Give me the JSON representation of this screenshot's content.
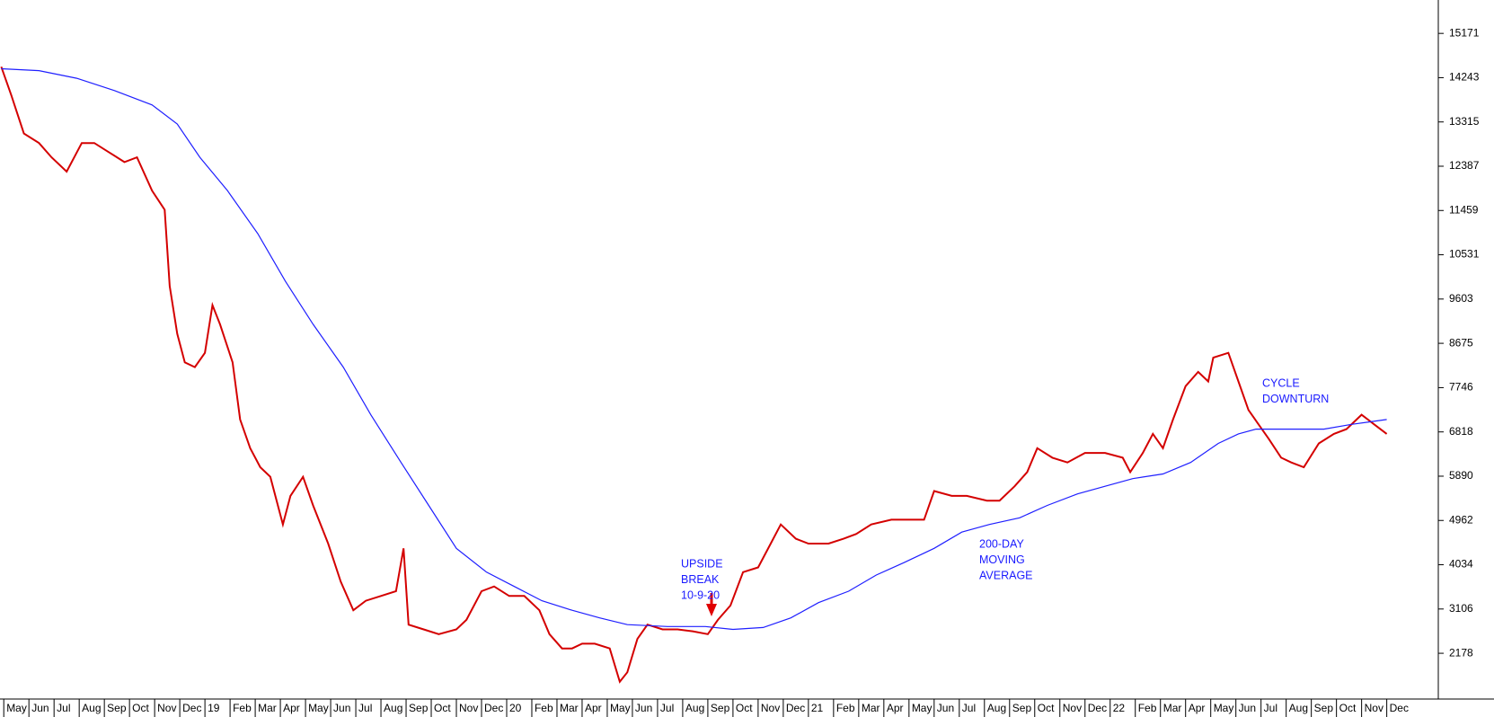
{
  "chart_data": {
    "type": "line",
    "xlim": [
      -0.15,
      57.05
    ],
    "ylim": [
      1219,
      15871
    ],
    "yticks": [
      2178,
      3106,
      4034,
      4962,
      5890,
      6818,
      7746,
      8675,
      9603,
      10531,
      11459,
      12387,
      13315,
      14243,
      15171
    ],
    "xticks": [
      {
        "value": 0,
        "label": "May"
      },
      {
        "value": 1,
        "label": "Jun"
      },
      {
        "value": 2,
        "label": "Jul"
      },
      {
        "value": 3,
        "label": "Aug"
      },
      {
        "value": 4,
        "label": "Sep"
      },
      {
        "value": 5,
        "label": "Oct"
      },
      {
        "value": 6,
        "label": "Nov"
      },
      {
        "value": 7,
        "label": "Dec"
      },
      {
        "value": 8,
        "label": "19"
      },
      {
        "value": 9,
        "label": "Feb"
      },
      {
        "value": 10,
        "label": "Mar"
      },
      {
        "value": 11,
        "label": "Apr"
      },
      {
        "value": 12,
        "label": "May"
      },
      {
        "value": 13,
        "label": "Jun"
      },
      {
        "value": 14,
        "label": "Jul"
      },
      {
        "value": 15,
        "label": "Aug"
      },
      {
        "value": 16,
        "label": "Sep"
      },
      {
        "value": 17,
        "label": "Oct"
      },
      {
        "value": 18,
        "label": "Nov"
      },
      {
        "value": 19,
        "label": "Dec"
      },
      {
        "value": 20,
        "label": "20"
      },
      {
        "value": 21,
        "label": "Feb"
      },
      {
        "value": 22,
        "label": "Mar"
      },
      {
        "value": 23,
        "label": "Apr"
      },
      {
        "value": 24,
        "label": "May"
      },
      {
        "value": 25,
        "label": "Jun"
      },
      {
        "value": 26,
        "label": "Jul"
      },
      {
        "value": 27,
        "label": "Aug"
      },
      {
        "value": 28,
        "label": "Sep"
      },
      {
        "value": 29,
        "label": "Oct"
      },
      {
        "value": 30,
        "label": "Nov"
      },
      {
        "value": 31,
        "label": "Dec"
      },
      {
        "value": 32,
        "label": "21"
      },
      {
        "value": 33,
        "label": "Feb"
      },
      {
        "value": 34,
        "label": "Mar"
      },
      {
        "value": 35,
        "label": "Apr"
      },
      {
        "value": 36,
        "label": "May"
      },
      {
        "value": 37,
        "label": "Jun"
      },
      {
        "value": 38,
        "label": "Jul"
      },
      {
        "value": 39,
        "label": "Aug"
      },
      {
        "value": 40,
        "label": "Sep"
      },
      {
        "value": 41,
        "label": "Oct"
      },
      {
        "value": 42,
        "label": "Nov"
      },
      {
        "value": 43,
        "label": "Dec"
      },
      {
        "value": 44,
        "label": "22"
      },
      {
        "value": 45,
        "label": "Feb"
      },
      {
        "value": 46,
        "label": "Mar"
      },
      {
        "value": 47,
        "label": "Apr"
      },
      {
        "value": 48,
        "label": "May"
      },
      {
        "value": 49,
        "label": "Jun"
      },
      {
        "value": 50,
        "label": "Jul"
      },
      {
        "value": 51,
        "label": "Aug"
      },
      {
        "value": 52,
        "label": "Sep"
      },
      {
        "value": 53,
        "label": "Oct"
      },
      {
        "value": 54,
        "label": "Nov"
      },
      {
        "value": 55,
        "label": "Dec"
      }
    ],
    "series": [
      {
        "color": "#d40000",
        "x": [
          -0.1,
          0.3,
          0.8,
          1.4,
          1.9,
          2.5,
          3.1,
          3.6,
          4.2,
          4.8,
          5.3,
          5.9,
          6.4,
          6.6,
          6.9,
          7.2,
          7.6,
          8.0,
          8.3,
          8.6,
          9.1,
          9.4,
          9.8,
          10.2,
          10.6,
          11.1,
          11.4,
          11.9,
          12.3,
          12.9,
          13.4,
          13.9,
          14.4,
          15.0,
          15.6,
          15.9,
          16.1,
          16.7,
          17.3,
          18.0,
          18.4,
          19.0,
          19.5,
          20.1,
          20.7,
          21.3,
          21.7,
          22.2,
          22.6,
          23.0,
          23.5,
          24.1,
          24.5,
          24.8,
          25.2,
          25.6,
          26.2,
          26.8,
          27.4,
          28.0,
          28.4,
          28.9,
          29.4,
          30.0,
          30.5,
          30.9,
          31.5,
          32.0,
          32.8,
          33.4,
          33.9,
          34.5,
          35.3,
          36.0,
          36.6,
          37.0,
          37.7,
          38.3,
          39.1,
          39.6,
          40.2,
          40.7,
          41.1,
          41.7,
          42.3,
          43.0,
          43.8,
          44.5,
          44.8,
          45.3,
          45.7,
          46.1,
          46.5,
          47.0,
          47.5,
          47.9,
          48.1,
          48.7,
          49.1,
          49.5,
          49.9,
          50.3,
          50.8,
          51.2,
          51.7,
          52.3,
          52.9,
          53.4,
          54.0,
          54.5,
          55.0
        ],
        "values": [
          14471,
          13872,
          13072,
          12872,
          12573,
          12273,
          12872,
          12872,
          12673,
          12473,
          12573,
          11873,
          11473,
          9875,
          8875,
          8275,
          8175,
          8475,
          9475,
          9075,
          8275,
          7077,
          6477,
          6077,
          5877,
          4878,
          5478,
          5877,
          5278,
          4478,
          3678,
          3079,
          3279,
          3379,
          3479,
          4378,
          2779,
          2679,
          2579,
          2679,
          2879,
          3479,
          3579,
          3379,
          3379,
          3079,
          2579,
          2279,
          2279,
          2379,
          2379,
          2279,
          1580,
          1780,
          2479,
          2779,
          2679,
          2679,
          2639,
          2579,
          2879,
          3179,
          3878,
          3978,
          4478,
          4878,
          4578,
          4478,
          4478,
          4578,
          4678,
          4878,
          4978,
          4978,
          4978,
          5578,
          5478,
          5478,
          5378,
          5378,
          5678,
          5977,
          6477,
          6277,
          6177,
          6377,
          6377,
          6277,
          5977,
          6377,
          6777,
          6477,
          7077,
          7777,
          8077,
          7877,
          8375,
          8475,
          7877,
          7277,
          6977,
          6677,
          6277,
          6177,
          6077,
          6577,
          6777,
          6877,
          7177,
          6977,
          6777
        ]
      },
      {
        "color": "#1f1fff",
        "x": [
          -0.1,
          1.4,
          2.9,
          4.4,
          5.9,
          6.9,
          7.8,
          8.9,
          10.1,
          11.2,
          12.3,
          13.5,
          14.6,
          15.8,
          16.9,
          18.0,
          19.2,
          20.3,
          21.4,
          22.6,
          23.7,
          24.8,
          26.4,
          27.9,
          29.0,
          30.2,
          31.3,
          32.4,
          33.6,
          34.7,
          35.8,
          37.0,
          38.1,
          39.2,
          40.4,
          41.5,
          42.7,
          43.8,
          44.9,
          46.1,
          47.2,
          48.3,
          49.1,
          49.8,
          51.0,
          52.5,
          53.6,
          55.0
        ],
        "values": [
          14431,
          14391,
          14231,
          13972,
          13672,
          13272,
          12573,
          11873,
          10974,
          9975,
          9075,
          8175,
          7176,
          6177,
          5278,
          4378,
          3878,
          3579,
          3279,
          3079,
          2919,
          2779,
          2739,
          2739,
          2679,
          2719,
          2919,
          3239,
          3479,
          3818,
          4078,
          4378,
          4718,
          4878,
          5018,
          5278,
          5518,
          5678,
          5838,
          5937,
          6177,
          6577,
          6777,
          6877,
          6877,
          6877,
          6977,
          7077
        ]
      }
    ],
    "annotations": [
      [
        "UPSIDE",
        "BREAK",
        "10-9-20"
      ],
      [
        "200-DAY",
        "MOVING",
        "AVERAGE"
      ],
      [
        "CYCLE",
        "DOWNTURN"
      ]
    ]
  }
}
